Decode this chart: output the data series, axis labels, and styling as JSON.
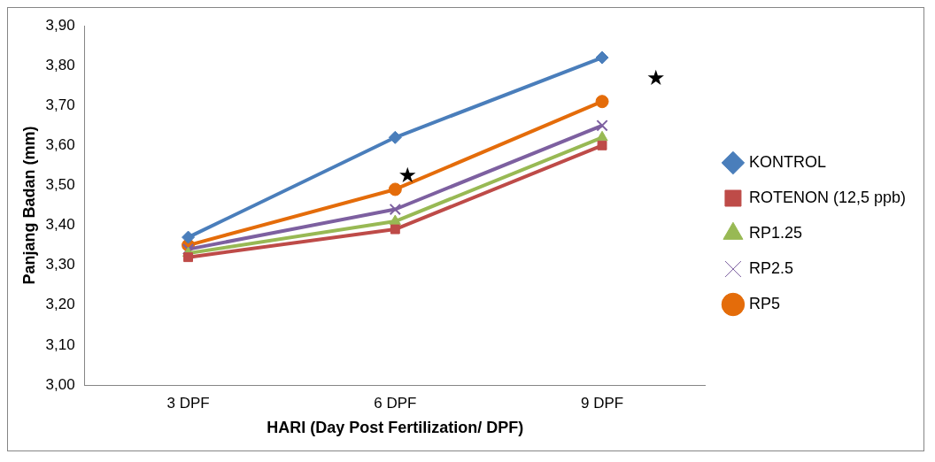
{
  "chart_data": {
    "type": "line",
    "xlabel": "HARI (Day Post Fertilization/ DPF)",
    "ylabel": "Panjang Badan (mm)",
    "categories": [
      "3 DPF",
      "6 DPF",
      "9 DPF"
    ],
    "series": [
      {
        "name": "KONTROL",
        "color": "#4a7ebb",
        "marker": "diamond",
        "values": [
          3.37,
          3.62,
          3.82
        ]
      },
      {
        "name": "ROTENON (12,5 ppb)",
        "color": "#be4b48",
        "marker": "square",
        "values": [
          3.32,
          3.39,
          3.6
        ]
      },
      {
        "name": "RP1.25",
        "color": "#98b954",
        "marker": "triangle",
        "values": [
          3.33,
          3.41,
          3.62
        ]
      },
      {
        "name": "RP2.5",
        "color": "#7d60a0",
        "marker": "cross",
        "values": [
          3.34,
          3.44,
          3.65
        ]
      },
      {
        "name": "RP5",
        "color": "#e46c0a",
        "marker": "circle",
        "values": [
          3.35,
          3.49,
          3.71
        ]
      }
    ],
    "ylim": [
      3,
      3.9
    ],
    "yticks": [
      {
        "value": 3,
        "label": "3,00"
      },
      {
        "value": 3.1,
        "label": "3,10"
      },
      {
        "value": 3.2,
        "label": "3,20"
      },
      {
        "value": 3.3,
        "label": "3,30"
      },
      {
        "value": 3.4,
        "label": "3,40"
      },
      {
        "value": 3.5,
        "label": "3,50"
      },
      {
        "value": 3.6,
        "label": "3,60"
      },
      {
        "value": 3.7,
        "label": "3,70"
      },
      {
        "value": 3.8,
        "label": "3,80"
      },
      {
        "value": 3.9,
        "label": "3,90"
      }
    ],
    "annotations": [
      "★",
      "★"
    ],
    "grid": false,
    "legend": "right",
    "line_style": "solid"
  }
}
